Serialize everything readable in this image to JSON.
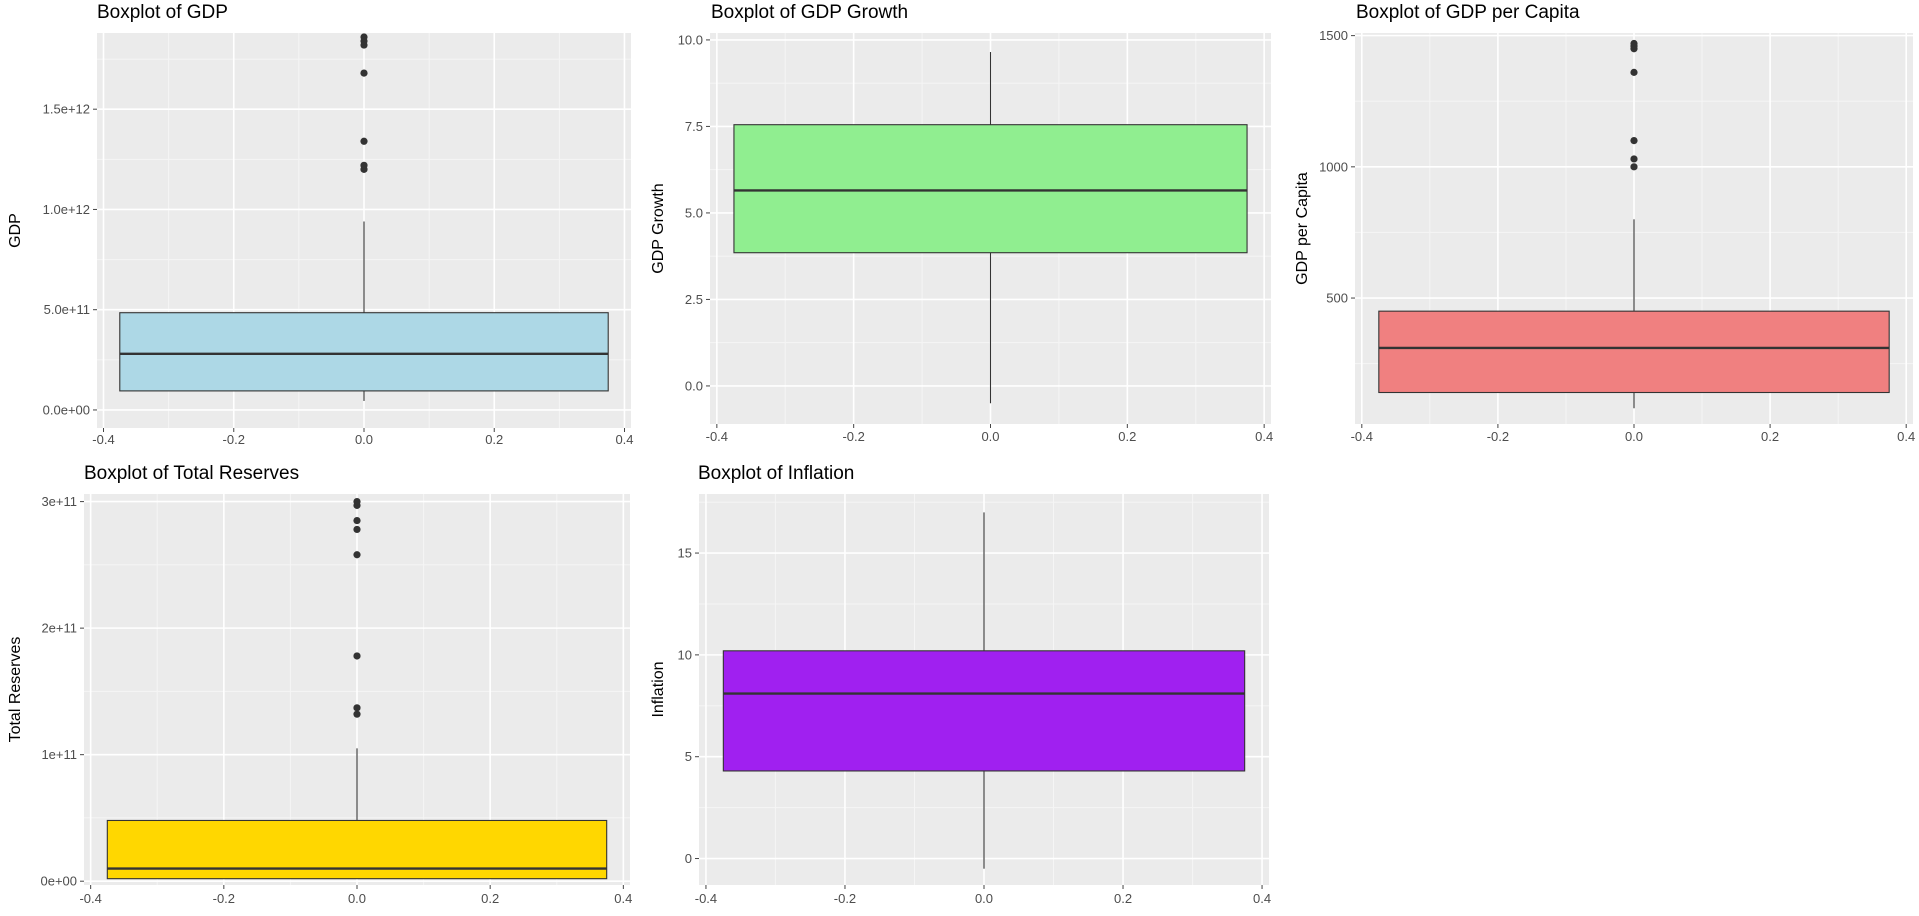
{
  "chart_data": [
    {
      "type": "boxplot",
      "title": "Boxplot of GDP",
      "xlabel": "",
      "ylabel": "GDP",
      "fill": "#add8e6",
      "xlim": [
        -0.41,
        0.41
      ],
      "ylim": [
        -90000000000.0,
        1880000000000.0
      ],
      "x_ticks": [
        -0.4,
        -0.2,
        0.0,
        0.2,
        0.4
      ],
      "x_tick_labels": [
        "-0.4",
        "-0.2",
        "0.0",
        "0.2",
        "0.4"
      ],
      "y_ticks": [
        0,
        500000000000.0,
        1000000000000.0,
        1500000000000.0
      ],
      "y_tick_labels": [
        "0.0e+00",
        "5.0e+11",
        "1.0e+12",
        "1.5e+12"
      ],
      "box": {
        "x_left": -0.375,
        "x_right": 0.375,
        "whisker_low": 45000000000.0,
        "q1": 95000000000.0,
        "median": 280000000000.0,
        "q3": 485000000000.0,
        "whisker_high": 940000000000.0
      },
      "outliers": [
        1200000000000.0,
        1220000000000.0,
        1340000000000.0,
        1680000000000.0,
        1820000000000.0,
        1840000000000.0,
        1860000000000.0
      ]
    },
    {
      "type": "boxplot",
      "title": "Boxplot of GDP Growth",
      "xlabel": "",
      "ylabel": "GDP Growth",
      "fill": "#90ee90",
      "xlim": [
        -0.41,
        0.41
      ],
      "ylim": [
        -1.1,
        10.2
      ],
      "x_ticks": [
        -0.4,
        -0.2,
        0.0,
        0.2,
        0.4
      ],
      "x_tick_labels": [
        "-0.4",
        "-0.2",
        "0.0",
        "0.2",
        "0.4"
      ],
      "y_ticks": [
        0,
        2.5,
        5.0,
        7.5,
        10.0
      ],
      "y_tick_labels": [
        "0.0",
        "2.5",
        "5.0",
        "7.5",
        "10.0"
      ],
      "box": {
        "x_left": -0.375,
        "x_right": 0.375,
        "whisker_low": -0.5,
        "q1": 3.85,
        "median": 5.65,
        "q3": 7.55,
        "whisker_high": 9.65
      },
      "outliers": []
    },
    {
      "type": "boxplot",
      "title": "Boxplot of GDP per Capita",
      "xlabel": "",
      "ylabel": "GDP per Capita",
      "fill": "#f08080",
      "xlim": [
        -0.41,
        0.41
      ],
      "ylim": [
        20,
        1510
      ],
      "x_ticks": [
        -0.4,
        -0.2,
        0.0,
        0.2,
        0.4
      ],
      "x_tick_labels": [
        "-0.4",
        "-0.2",
        "0.0",
        "0.2",
        "0.4"
      ],
      "y_ticks": [
        500,
        1000,
        1500
      ],
      "y_tick_labels": [
        "500",
        "1000",
        "1500"
      ],
      "box": {
        "x_left": -0.375,
        "x_right": 0.375,
        "whisker_low": 80,
        "q1": 140,
        "median": 310,
        "q3": 450,
        "whisker_high": 800
      },
      "outliers": [
        1000,
        1030,
        1100,
        1360,
        1450,
        1460,
        1470
      ]
    },
    {
      "type": "boxplot",
      "title": "Boxplot of Total Reserves",
      "xlabel": "",
      "ylabel": "Total Reserves",
      "fill": "#ffd700",
      "xlim": [
        -0.41,
        0.41
      ],
      "ylim": [
        -3000000000.0,
        306000000000.0
      ],
      "x_ticks": [
        -0.4,
        -0.2,
        0.0,
        0.2,
        0.4
      ],
      "x_tick_labels": [
        "-0.4",
        "-0.2",
        "0.0",
        "0.2",
        "0.4"
      ],
      "y_ticks": [
        0,
        100000000000.0,
        200000000000.0,
        300000000000.0
      ],
      "y_tick_labels": [
        "0e+00",
        "1e+11",
        "2e+11",
        "3e+11"
      ],
      "box": {
        "x_left": -0.375,
        "x_right": 0.375,
        "whisker_low": 2000000000.0,
        "q1": 2000000000.0,
        "median": 10000000000.0,
        "q3": 48000000000.0,
        "whisker_high": 105000000000.0
      },
      "outliers": [
        132000000000.0,
        137000000000.0,
        178000000000.0,
        258000000000.0,
        278000000000.0,
        285000000000.0,
        297000000000.0,
        300000000000.0
      ]
    },
    {
      "type": "boxplot",
      "title": "Boxplot of Inflation",
      "xlabel": "",
      "ylabel": "Inflation",
      "fill": "#a020f0",
      "xlim": [
        -0.41,
        0.41
      ],
      "ylim": [
        -1.3,
        17.9
      ],
      "x_ticks": [
        -0.4,
        -0.2,
        0.0,
        0.2,
        0.4
      ],
      "x_tick_labels": [
        "-0.4",
        "-0.2",
        "0.0",
        "0.2",
        "0.4"
      ],
      "y_ticks": [
        0,
        5,
        10,
        15
      ],
      "y_tick_labels": [
        "0",
        "5",
        "10",
        "15"
      ],
      "box": {
        "x_left": -0.375,
        "x_right": 0.375,
        "whisker_low": -0.5,
        "q1": 4.3,
        "median": 8.1,
        "q3": 10.2,
        "whisker_high": 17.0
      },
      "outliers": []
    }
  ]
}
